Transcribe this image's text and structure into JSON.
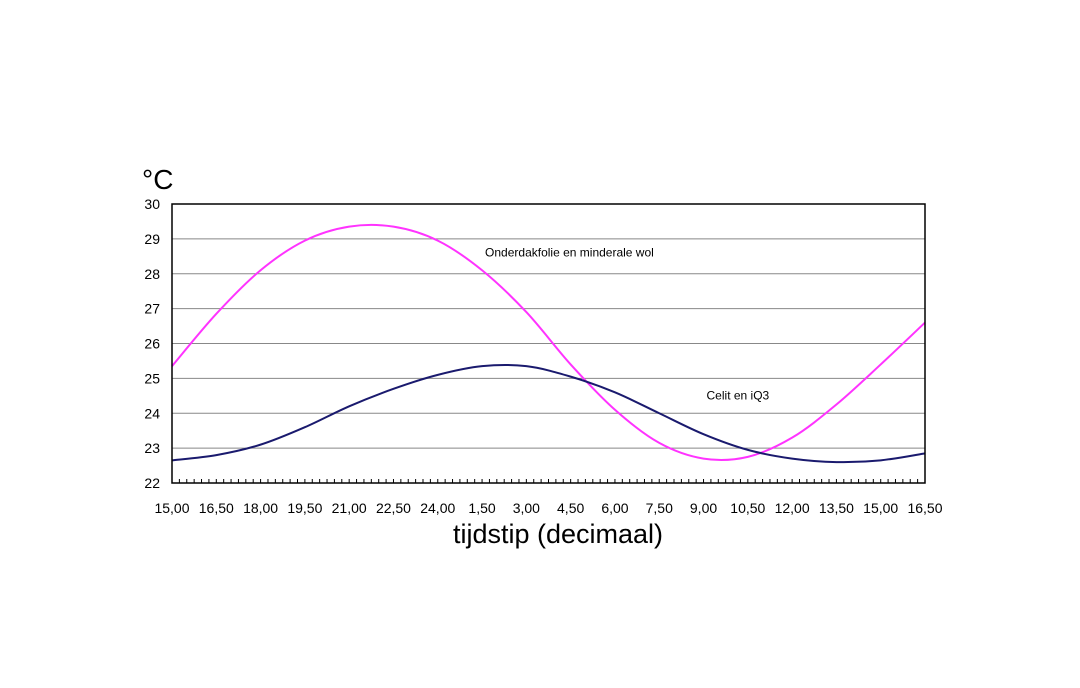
{
  "chart_data": {
    "type": "line",
    "title": "",
    "ylabel": "°C",
    "xlabel": "tijdstip (decimaal)",
    "ylim": [
      22,
      30
    ],
    "y_ticks": [
      22,
      23,
      24,
      25,
      26,
      27,
      28,
      29,
      30
    ],
    "x_tick_labels": [
      "15,00",
      "16,50",
      "18,00",
      "19,50",
      "21,00",
      "22,50",
      "24,00",
      "1,50",
      "3,00",
      "4,50",
      "6,00",
      "7,50",
      "9,00",
      "10,50",
      "12,00",
      "13,50",
      "15,00",
      "16,50"
    ],
    "grid": true,
    "colors": {
      "series_1": "#ff33ff",
      "series_2": "#1a1a6e",
      "grid": "#888888",
      "axis": "#000000"
    },
    "x": [
      "15,00",
      "16,50",
      "18,00",
      "19,50",
      "21,00",
      "22,50",
      "24,00",
      "1,50",
      "3,00",
      "4,50",
      "6,00",
      "7,50",
      "9,00",
      "10,50",
      "12,00",
      "13,50",
      "15,00",
      "16,50"
    ],
    "series": [
      {
        "values": [
          25.35,
          26.85,
          28.1,
          28.95,
          29.35,
          29.35,
          28.95,
          28.1,
          26.9,
          25.4,
          24.1,
          23.15,
          22.7,
          22.75,
          23.3,
          24.25,
          25.4,
          26.6
        ]
      },
      {
        "values": [
          22.65,
          22.8,
          23.1,
          23.6,
          24.2,
          24.7,
          25.1,
          25.35,
          25.35,
          25.05,
          24.6,
          24.0,
          23.4,
          22.95,
          22.7,
          22.6,
          22.65,
          22.85
        ]
      }
    ],
    "annotations": [
      {
        "text": "Onderdakfolie en minderale wol",
        "x": "1,50",
        "y": 28.5
      },
      {
        "text": "Celit en iQ3",
        "x": "9,00",
        "y": 24.4
      }
    ]
  }
}
